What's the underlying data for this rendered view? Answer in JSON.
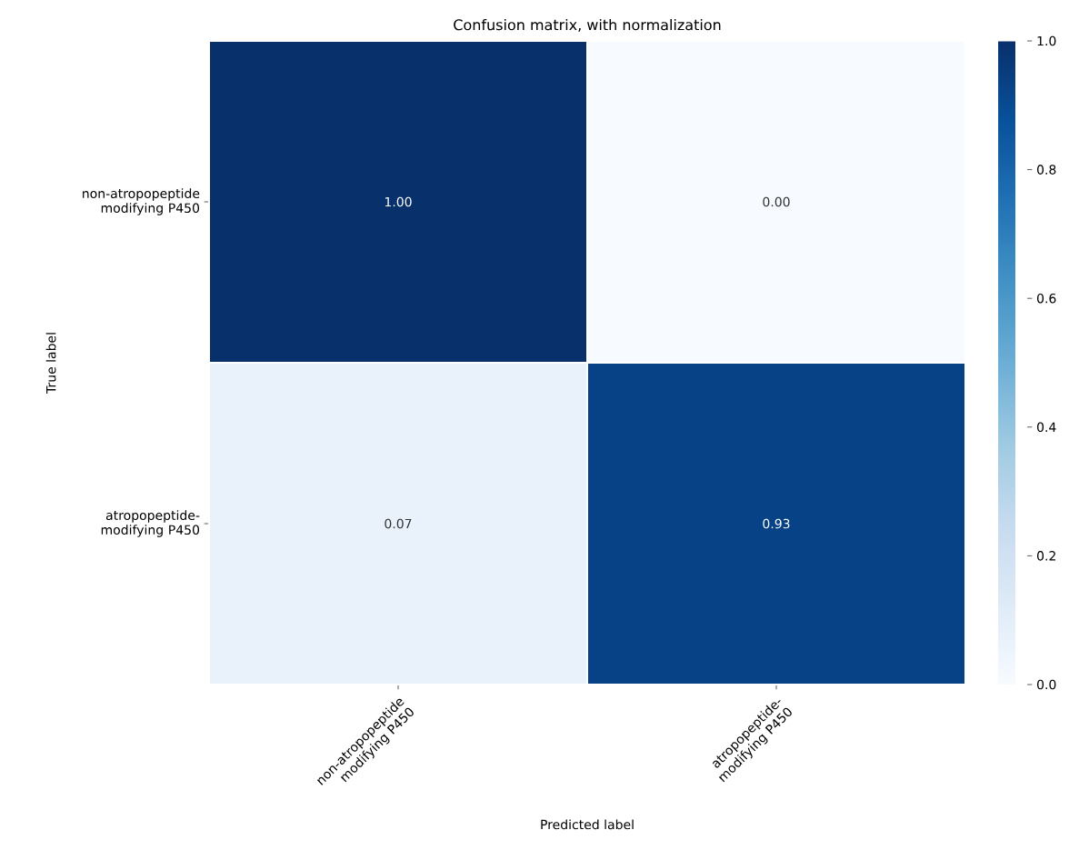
{
  "chart_data": {
    "type": "heatmap",
    "title": "Confusion matrix, with normalization",
    "xlabel": "Predicted label",
    "ylabel": "True label",
    "categories": [
      "non-atropopeptide modifying P450",
      "atropopeptide-modifying P450"
    ],
    "y_categories": [
      "non-atropopeptide modifying P450",
      "atropopeptide-modifying P450"
    ],
    "cells": [
      [
        1.0,
        0.0
      ],
      [
        0.07,
        0.93
      ]
    ],
    "cell_labels": [
      [
        "1.00",
        "0.00"
      ],
      [
        "0.07",
        "0.93"
      ]
    ],
    "clim": [
      0,
      1
    ],
    "cticks": [
      {
        "value": 0,
        "label": "0.0"
      },
      {
        "value": 0.2,
        "label": "0.2"
      },
      {
        "value": 0.4,
        "label": "0.4"
      },
      {
        "value": 0.6,
        "label": "0.6"
      },
      {
        "value": 0.8,
        "label": "0.8"
      },
      {
        "value": 1,
        "label": "1.0"
      }
    ]
  }
}
